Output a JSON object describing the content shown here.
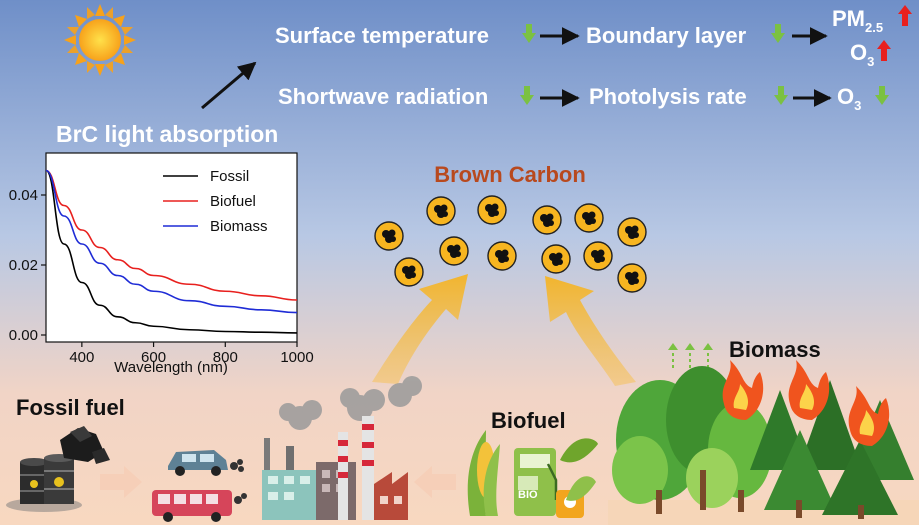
{
  "top_chain": {
    "row1": [
      "Surface temperature",
      "Boundary layer"
    ],
    "row2": [
      "Shortwave radiation",
      "Photolysis rate"
    ],
    "pm_base": "PM",
    "pm_sub": "2.5",
    "o3_base": "O",
    "o3_sub": "3"
  },
  "panel_title": "BrC light absorption",
  "center_title": "Brown Carbon",
  "sources": {
    "fossil": "Fossil fuel",
    "biofuel": "Biofuel",
    "biomass": "Biomass",
    "bio_label": "BIO"
  },
  "colors": {
    "sky_top": "#6F8FC8",
    "sky_bottom": "#F6D6C2",
    "up_arrow": "#7BC142",
    "down_arrow": "#E8201E",
    "brown_carbon": "#B8491E",
    "particle": "#F7B520"
  },
  "chart_data": {
    "type": "line",
    "xlabel": "Wavelength (nm)",
    "ylabel": "",
    "xlim": [
      300,
      1000
    ],
    "ylim": [
      -0.002,
      0.052
    ],
    "xticks": [
      400,
      600,
      800,
      1000
    ],
    "yticks": [
      "0.00",
      "0.02",
      "0.04"
    ],
    "legend_position": "top-right",
    "x": [
      300,
      350,
      400,
      450,
      500,
      550,
      600,
      700,
      800,
      900,
      1000
    ],
    "series": [
      {
        "name": "Fossil",
        "color": "#000000",
        "values": [
          0.047,
          0.026,
          0.015,
          0.0085,
          0.0052,
          0.0035,
          0.0025,
          0.0015,
          0.001,
          0.0008,
          0.0006
        ]
      },
      {
        "name": "Biofuel",
        "color": "#E8201E",
        "values": [
          0.047,
          0.037,
          0.03,
          0.025,
          0.0215,
          0.019,
          0.017,
          0.0145,
          0.0125,
          0.0112,
          0.01
        ]
      },
      {
        "name": "Biomass",
        "color": "#1F2CD6",
        "values": [
          0.047,
          0.034,
          0.026,
          0.0205,
          0.017,
          0.0145,
          0.0125,
          0.0098,
          0.0082,
          0.0072,
          0.0064
        ]
      }
    ]
  }
}
